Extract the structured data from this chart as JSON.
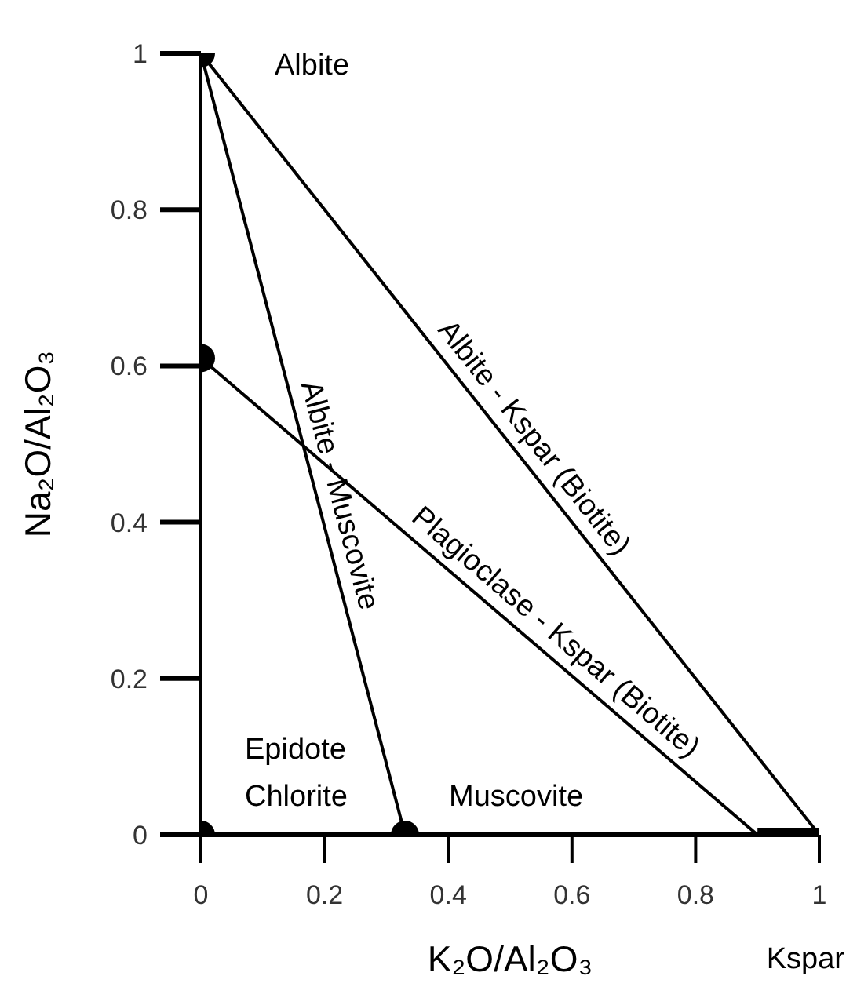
{
  "chart_data": {
    "type": "scatter",
    "xlabel": "K₂O/Al₂O₃",
    "ylabel": "Na₂O/Al₂O₃",
    "xlim": [
      0,
      1
    ],
    "ylim": [
      0,
      1
    ],
    "xticks": [
      0,
      0.2,
      0.4,
      0.6,
      0.8,
      1
    ],
    "yticks": [
      0,
      0.2,
      0.4,
      0.6,
      0.8,
      1
    ],
    "series": [
      {
        "type": "line",
        "color": "#000000",
        "x": [
          0,
          1
        ],
        "values": [
          1,
          0
        ]
      },
      {
        "type": "line",
        "color": "#000000",
        "x": [
          0,
          0.33
        ],
        "values": [
          1,
          0
        ]
      },
      {
        "type": "line",
        "color": "#000000",
        "x": [
          0,
          0.9
        ],
        "values": [
          0.61,
          0
        ]
      },
      {
        "type": "line",
        "color": "#000000",
        "x": [
          0.9,
          1
        ],
        "values": [
          0,
          0
        ]
      },
      {
        "type": "scatter",
        "color": "#000000",
        "marker": "circle",
        "x": [
          0,
          0,
          0,
          0.33
        ],
        "values": [
          1,
          0.61,
          0,
          0
        ]
      }
    ],
    "annotations": [
      {
        "text": "Albite",
        "x": 0,
        "y": 1
      },
      {
        "text": "Albite - Kspar (Biotite)",
        "x": 0.51,
        "y": 0.49
      },
      {
        "text": "Albite - Muscovite",
        "x": 0.189,
        "y": 0.427
      },
      {
        "text": "Plagioclase - Kspar (Biotite)",
        "x": 0.55,
        "y": 0.2372
      },
      {
        "text": "Epidote",
        "x": 0,
        "y": 0
      },
      {
        "text": "Chlorite",
        "x": 0,
        "y": 0
      },
      {
        "text": "Muscovite",
        "x": 0.33,
        "y": 0
      },
      "Kspar"
    ]
  }
}
